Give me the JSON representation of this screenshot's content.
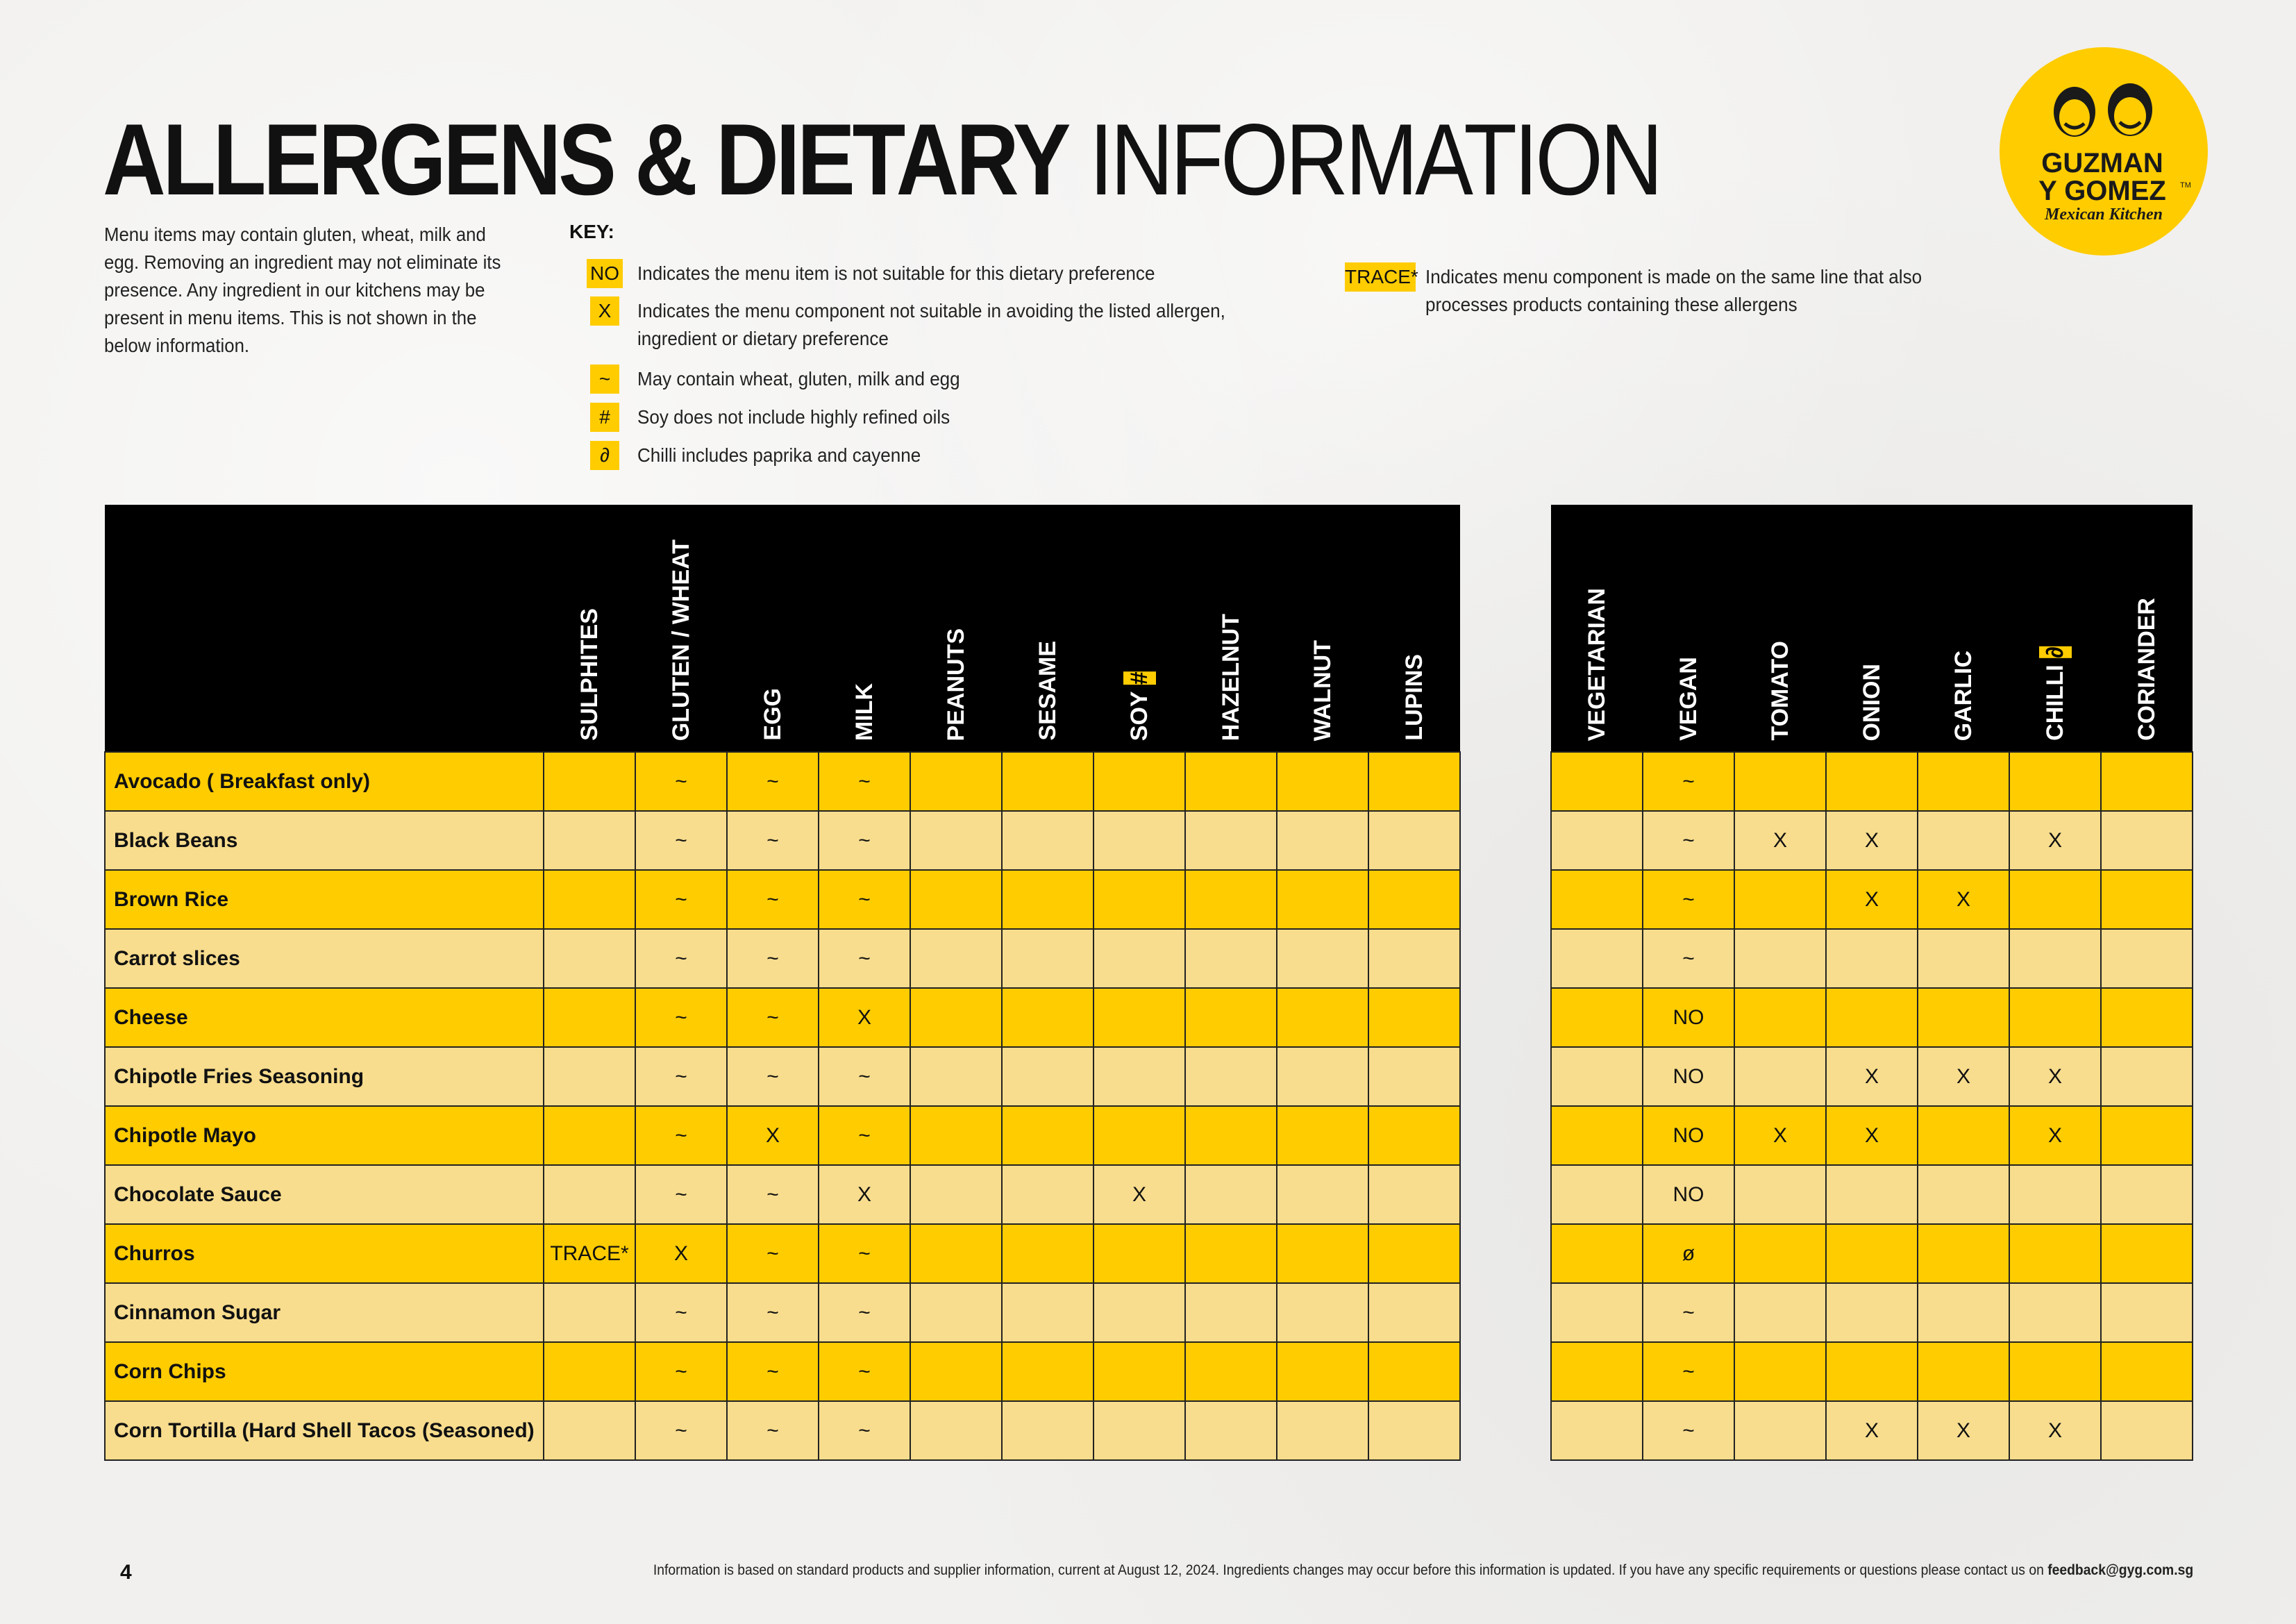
{
  "title": {
    "bold": "ALLERGENS & DIETARY",
    "light": " INFORMATION"
  },
  "intro": "Menu items may contain gluten, wheat, milk and egg. Removing an ingredient may not eliminate its presence. Any ingredient in our kitchens may be present in menu items. This is not shown in the below information.",
  "key": {
    "title": "KEY:",
    "items": [
      {
        "badge": "NO",
        "text": "Indicates the menu item is not suitable for this dietary preference"
      },
      {
        "badge": "X",
        "text": "Indicates the menu component not suitable in avoiding the listed allergen,",
        "text2": "ingredient or dietary preference"
      },
      {
        "badge": "~",
        "text": "May contain wheat, gluten, milk and egg"
      },
      {
        "badge": "#",
        "text": "Soy does not include highly refined oils"
      },
      {
        "badge": "∂",
        "text": "Chilli includes paprika and cayenne"
      }
    ],
    "trace": {
      "badge": "TRACE*",
      "text": "Indicates menu component is made on the same line that also",
      "text2": "processes products containing these allergens"
    }
  },
  "logo": {
    "line1": "GUZMAN",
    "line2": "Y GOMEZ",
    "tm": "TM",
    "tagline": "Mexican Kitchen"
  },
  "allergen_headers": [
    "SULPHITES",
    "GLUTEN / WHEAT",
    "EGG",
    "MILK",
    "PEANUTS",
    "SESAME",
    "SOY",
    "HAZELNUT",
    "WALNUT",
    "LUPINS"
  ],
  "soy_mark": "#",
  "dietary_headers": [
    "VEGETARIAN",
    "VEGAN",
    "TOMATO",
    "ONION",
    "GARLIC",
    "CHILLI",
    "CORIANDER"
  ],
  "chilli_mark": "∂",
  "rows": [
    {
      "name": "Avocado ( Breakfast only)",
      "allergens": [
        "",
        "~",
        "~",
        "~",
        "",
        "",
        "",
        "",
        "",
        ""
      ],
      "dietary": [
        "",
        "~",
        "",
        "",
        "",
        "",
        ""
      ]
    },
    {
      "name": "Black Beans",
      "allergens": [
        "",
        "~",
        "~",
        "~",
        "",
        "",
        "",
        "",
        "",
        ""
      ],
      "dietary": [
        "",
        "~",
        "X",
        "X",
        "",
        "X",
        ""
      ]
    },
    {
      "name": "Brown Rice",
      "allergens": [
        "",
        "~",
        "~",
        "~",
        "",
        "",
        "",
        "",
        "",
        ""
      ],
      "dietary": [
        "",
        "~",
        "",
        "X",
        "X",
        "",
        ""
      ]
    },
    {
      "name": "Carrot slices",
      "allergens": [
        "",
        "~",
        "~",
        "~",
        "",
        "",
        "",
        "",
        "",
        ""
      ],
      "dietary": [
        "",
        "~",
        "",
        "",
        "",
        "",
        ""
      ]
    },
    {
      "name": "Cheese",
      "allergens": [
        "",
        "~",
        "~",
        "X",
        "",
        "",
        "",
        "",
        "",
        ""
      ],
      "dietary": [
        "",
        "NO",
        "",
        "",
        "",
        "",
        ""
      ]
    },
    {
      "name": "Chipotle Fries Seasoning",
      "allergens": [
        "",
        "~",
        "~",
        "~",
        "",
        "",
        "",
        "",
        "",
        ""
      ],
      "dietary": [
        "",
        "NO",
        "",
        "X",
        "X",
        "X",
        ""
      ]
    },
    {
      "name": "Chipotle Mayo",
      "allergens": [
        "",
        "~",
        "X",
        "~",
        "",
        "",
        "",
        "",
        "",
        ""
      ],
      "dietary": [
        "",
        "NO",
        "X",
        "X",
        "",
        "X",
        ""
      ]
    },
    {
      "name": "Chocolate Sauce",
      "allergens": [
        "",
        "~",
        "~",
        "X",
        "",
        "",
        "X",
        "",
        "",
        ""
      ],
      "dietary": [
        "",
        "NO",
        "",
        "",
        "",
        "",
        ""
      ]
    },
    {
      "name": "Churros",
      "allergens": [
        "TRACE*",
        "X",
        "~",
        "~",
        "",
        "",
        "",
        "",
        "",
        ""
      ],
      "dietary": [
        "",
        "ø",
        "",
        "",
        "",
        "",
        ""
      ]
    },
    {
      "name": "Cinnamon Sugar",
      "allergens": [
        "",
        "~",
        "~",
        "~",
        "",
        "",
        "",
        "",
        "",
        ""
      ],
      "dietary": [
        "",
        "~",
        "",
        "",
        "",
        "",
        ""
      ]
    },
    {
      "name": "Corn Chips",
      "allergens": [
        "",
        "~",
        "~",
        "~",
        "",
        "",
        "",
        "",
        "",
        ""
      ],
      "dietary": [
        "",
        "~",
        "",
        "",
        "",
        "",
        ""
      ]
    },
    {
      "name": "Corn Tortilla (Hard Shell Tacos (Seasoned)",
      "allergens": [
        "",
        "~",
        "~",
        "~",
        "",
        "",
        "",
        "",
        "",
        ""
      ],
      "dietary": [
        "",
        "~",
        "",
        "X",
        "X",
        "X",
        ""
      ]
    }
  ],
  "page_number": "4",
  "footer": {
    "text": "Information is based on standard products and supplier information, current at August 12, 2024. Ingredients changes may occur before this information is updated. If you have any specific requirements or questions please contact us on ",
    "email": "feedback@gyg.com.sg"
  }
}
